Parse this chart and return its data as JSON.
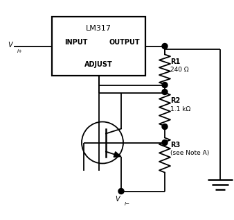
{
  "ic_label": "LM317",
  "ic_input": "INPUT",
  "ic_output": "OUTPUT",
  "ic_adjust": "ADJUST",
  "r1_label": "R1",
  "r1_value": "240 Ω",
  "r2_label": "R2",
  "r2_value": "1.1 kΩ",
  "r3_label": "R3",
  "r3_value": "(see Note A)",
  "vi_plus": "V",
  "vi_plus_sub": "I+",
  "vi_minus": "V",
  "vi_minus_sub": "I−",
  "bg_color": "#ffffff",
  "line_color": "#000000",
  "line_width": 1.3,
  "figsize": [
    3.38,
    3.17
  ],
  "dpi": 100
}
